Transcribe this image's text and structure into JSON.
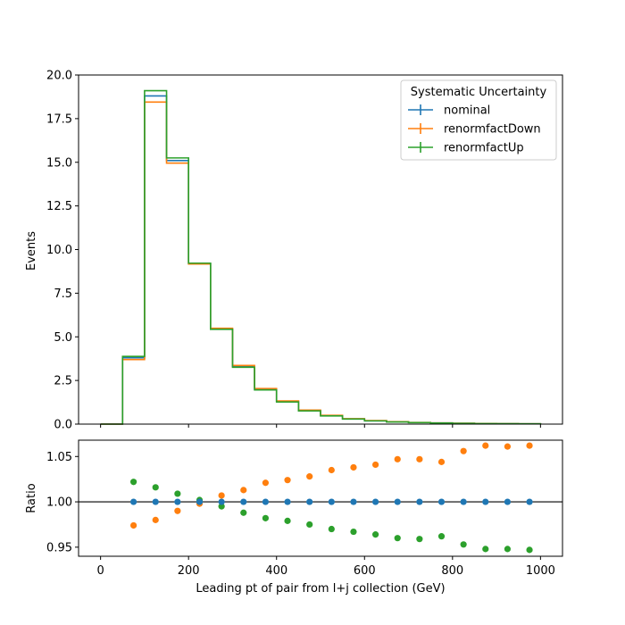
{
  "chart_data": {
    "type": "histogram-with-ratio",
    "xlabel": "Leading pt of pair from l+j collection (GeV)",
    "bin_edges": [
      0,
      50,
      100,
      150,
      200,
      250,
      300,
      350,
      400,
      450,
      500,
      550,
      600,
      650,
      700,
      750,
      800,
      850,
      900,
      950,
      1000
    ],
    "x_ticks": [
      0,
      200,
      400,
      600,
      800,
      1000
    ],
    "main": {
      "ylabel": "Events",
      "ylim": [
        0,
        20
      ],
      "y_ticks": [
        "0.0",
        "2.5",
        "5.0",
        "7.5",
        "10.0",
        "12.5",
        "15.0",
        "17.5",
        "20.0"
      ],
      "series": [
        {
          "name": "nominal",
          "color": "#1f77b4",
          "values": [
            0,
            3.8,
            18.8,
            15.1,
            9.2,
            5.45,
            3.3,
            2.0,
            1.3,
            0.78,
            0.48,
            0.3,
            0.19,
            0.13,
            0.09,
            0.065,
            0.045,
            0.032,
            0.023,
            0.017
          ]
        },
        {
          "name": "renormfactDown",
          "color": "#ff7f0e",
          "values": [
            0,
            3.7,
            18.45,
            14.95,
            9.17,
            5.49,
            3.36,
            2.04,
            1.33,
            0.8,
            0.5,
            0.31,
            0.2,
            0.135,
            0.095,
            0.068,
            0.047,
            0.034,
            0.024,
            0.018
          ]
        },
        {
          "name": "renormfactUp",
          "color": "#2ca02c",
          "values": [
            0,
            3.88,
            19.1,
            15.25,
            9.22,
            5.43,
            3.26,
            1.96,
            1.27,
            0.76,
            0.47,
            0.29,
            0.185,
            0.125,
            0.087,
            0.063,
            0.043,
            0.03,
            0.022,
            0.016
          ]
        }
      ]
    },
    "legend": {
      "title": "Systematic Uncertainty",
      "placement": "upper right"
    },
    "ratio": {
      "ylabel": "Ratio",
      "ylim": [
        0.94,
        1.068
      ],
      "y_ticks": [
        "0.95",
        "1.00",
        "1.05"
      ],
      "reference_line": 1.0,
      "x": [
        75,
        125,
        175,
        225,
        275,
        325,
        375,
        425,
        475,
        525,
        575,
        625,
        675,
        725,
        775,
        825,
        875,
        925,
        975
      ],
      "series": [
        {
          "name": "nominal",
          "color": "#1f77b4",
          "values": [
            1.0,
            1.0,
            1.0,
            1.0,
            1.0,
            1.0,
            1.0,
            1.0,
            1.0,
            1.0,
            1.0,
            1.0,
            1.0,
            1.0,
            1.0,
            1.0,
            1.0,
            1.0,
            1.0
          ]
        },
        {
          "name": "renormfactDown",
          "color": "#ff7f0e",
          "values": [
            0.974,
            0.98,
            0.99,
            0.998,
            1.007,
            1.013,
            1.021,
            1.024,
            1.028,
            1.035,
            1.038,
            1.041,
            1.047,
            1.047,
            1.044,
            1.056,
            1.062,
            1.061,
            1.062
          ]
        },
        {
          "name": "renormfactUp",
          "color": "#2ca02c",
          "values": [
            1.022,
            1.016,
            1.009,
            1.002,
            0.995,
            0.988,
            0.982,
            0.979,
            0.975,
            0.97,
            0.967,
            0.964,
            0.96,
            0.959,
            0.962,
            0.953,
            0.948,
            0.948,
            0.947
          ]
        }
      ]
    }
  }
}
